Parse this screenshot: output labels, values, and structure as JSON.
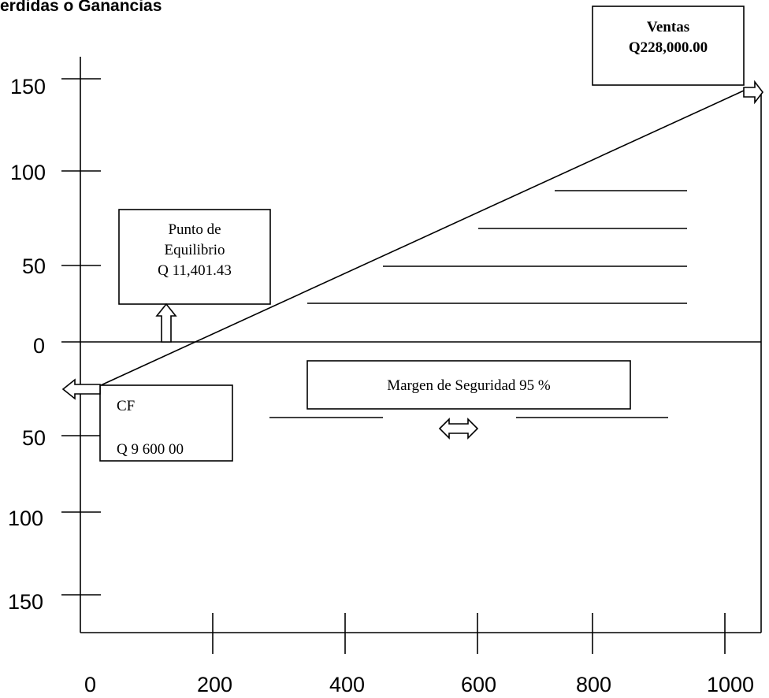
{
  "chart_data": {
    "type": "line",
    "title": "erdidas o Ganancias",
    "x_ticks": [
      "0",
      "200",
      "400",
      "600",
      "800",
      "1000"
    ],
    "y_ticks_upper": [
      "150",
      "100",
      "50",
      "0"
    ],
    "y_ticks_lower": [
      "50",
      "100",
      "150"
    ],
    "series": [
      {
        "x": [
          18,
          1050
        ],
        "y": [
          -24,
          150
        ]
      }
    ],
    "annotations": {
      "ventas": [
        "Ventas",
        "Q228,000.00"
      ],
      "punto_equilibrio": [
        "Punto de",
        "Equilibrio",
        "Q 11,401.43"
      ],
      "costo_fijo": [
        "CF",
        "Q 9 600 00"
      ],
      "margen": "Margen de Seguridad  95 %"
    },
    "colors": {
      "line": "#000000",
      "background": "#ffffff"
    }
  }
}
